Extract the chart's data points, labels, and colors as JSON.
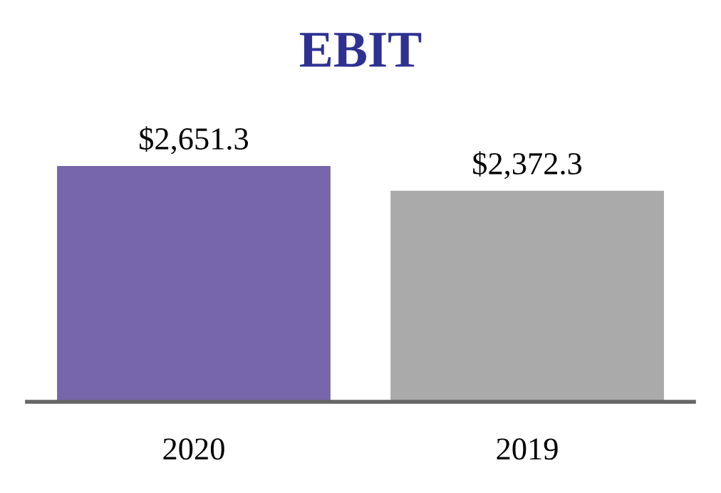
{
  "chart_data": {
    "type": "bar",
    "title": "EBIT",
    "categories": [
      "2020",
      "2019"
    ],
    "values": [
      2651.3,
      2372.3
    ],
    "value_labels": [
      "$2,651.3",
      "$2,372.3"
    ],
    "colors": [
      "#7766aa",
      "#aaaaaa"
    ],
    "tick_labels": "x",
    "grid": false,
    "legend": false
  }
}
